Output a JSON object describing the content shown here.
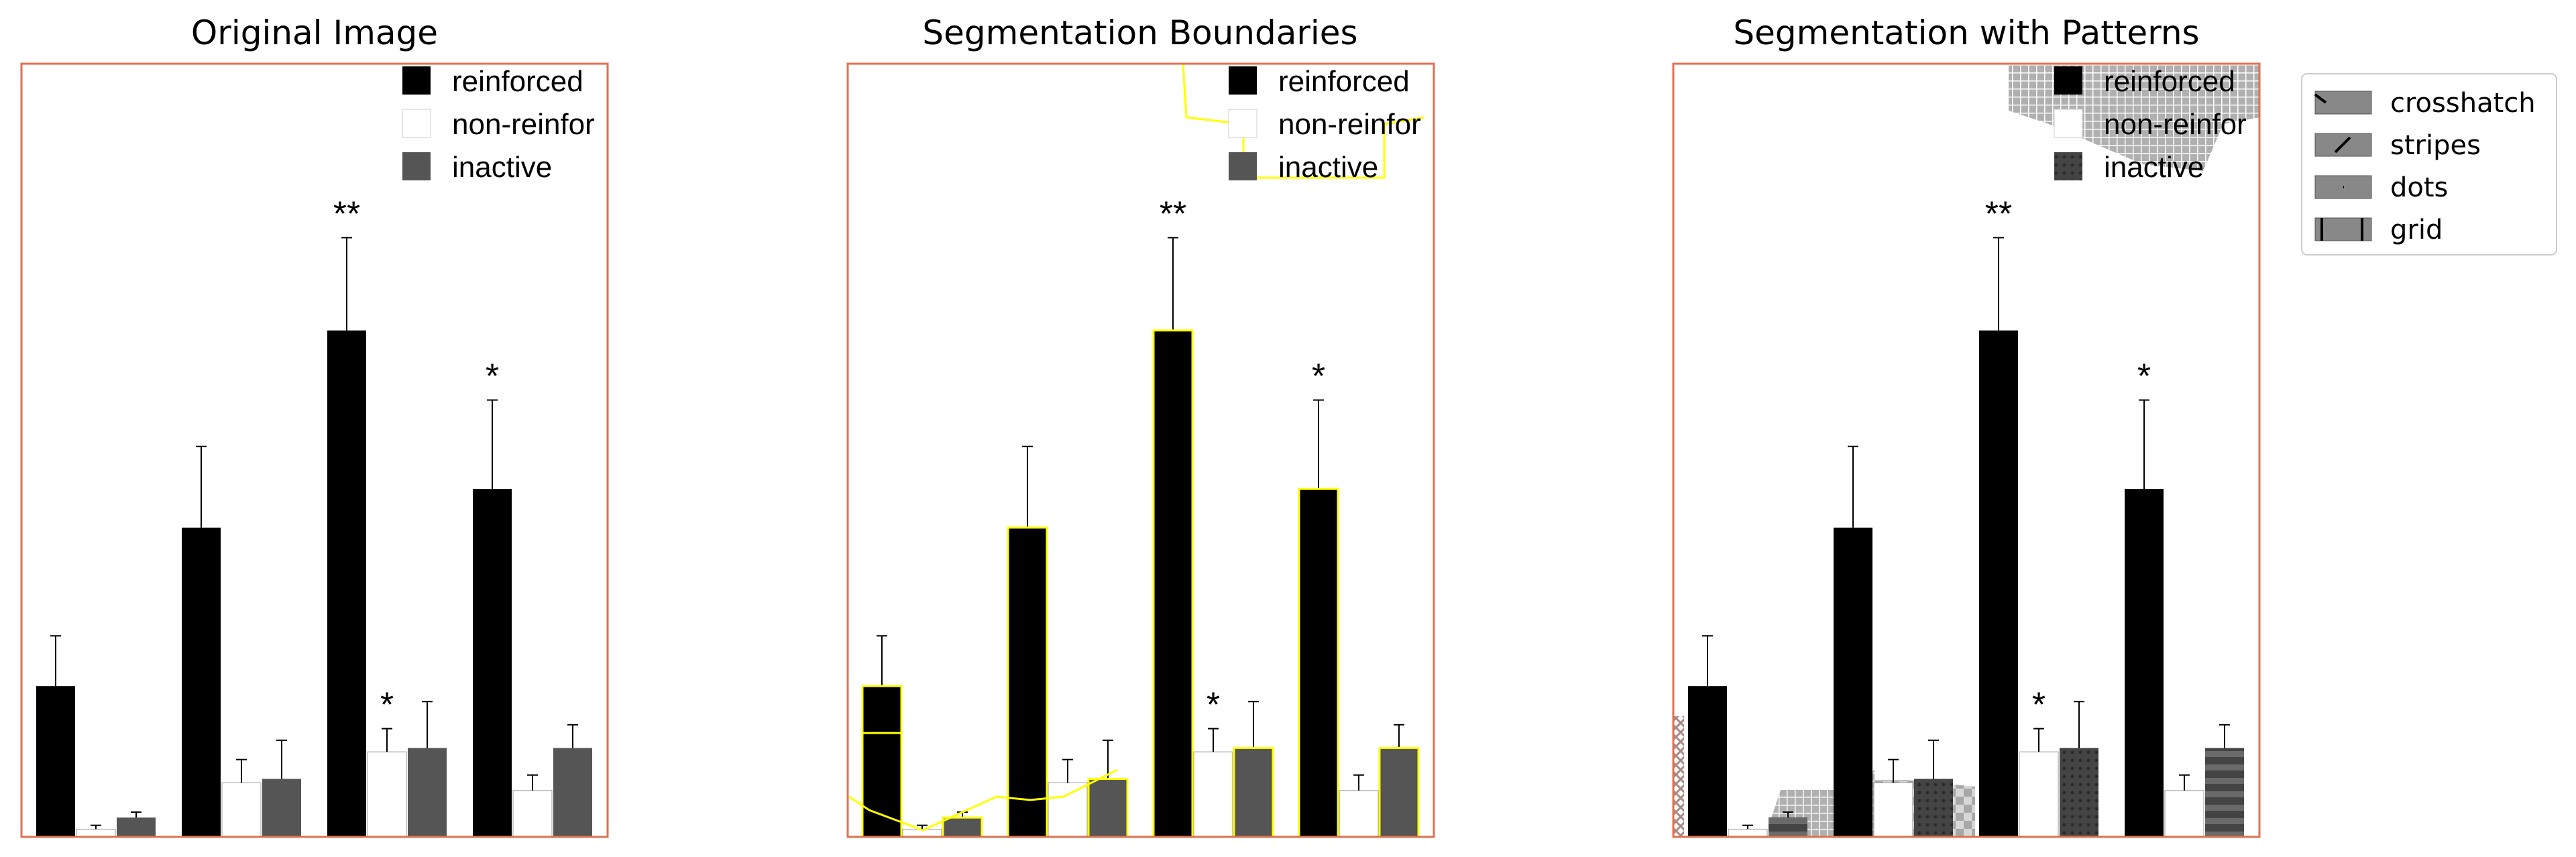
{
  "panels": [
    {
      "title": "Original Image",
      "overlay": "none"
    },
    {
      "title": "Segmentation Boundaries",
      "overlay": "boundaries"
    },
    {
      "title": "Segmentation with Patterns",
      "overlay": "patterns"
    }
  ],
  "chart_data": {
    "type": "bar",
    "title": "",
    "xlabel": "",
    "ylabel": "",
    "ylim": [
      0,
      100
    ],
    "grid": false,
    "legend_placement": "top-right",
    "groups": 4,
    "series": [
      {
        "name": "reinforced",
        "color": "#000000",
        "values": [
          19.5,
          40,
          65.5,
          45
        ],
        "errors": [
          6.5,
          10.5,
          12,
          11.5
        ]
      },
      {
        "name": "non-reinfor",
        "color": "#ffffff",
        "values": [
          1,
          7,
          11,
          6
        ],
        "errors": [
          0.5,
          3,
          3,
          2
        ]
      },
      {
        "name": "inactive",
        "color": "#555555",
        "values": [
          2.5,
          7.5,
          11.5,
          11.5
        ],
        "errors": [
          0.7,
          5,
          6,
          3
        ]
      }
    ],
    "annotations": [
      {
        "text": "**",
        "series": 0,
        "group": 2
      },
      {
        "text": "*",
        "series": 0,
        "group": 3
      },
      {
        "text": "*",
        "series": 1,
        "group": 2
      }
    ]
  },
  "pattern_legend": {
    "items": [
      {
        "label": "crosshatch",
        "icon": "crosshatch-pattern-icon"
      },
      {
        "label": "stripes",
        "icon": "stripes-pattern-icon"
      },
      {
        "label": "dots",
        "icon": "dots-pattern-icon"
      },
      {
        "label": "grid",
        "icon": "grid-pattern-icon"
      }
    ]
  },
  "colors": {
    "frame": "#e07050",
    "boundary": "#ffff00",
    "reinforced": "#000000",
    "inactive": "#555555"
  }
}
